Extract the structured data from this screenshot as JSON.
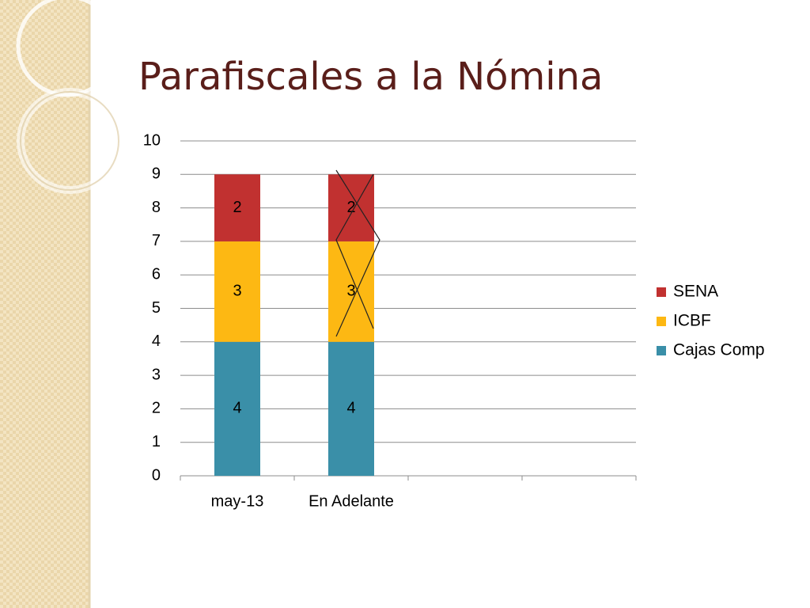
{
  "chart_data": {
    "type": "stacked_bar",
    "title": "Parafiscales a la Nómina",
    "categories": [
      "may-13",
      "En Adelante",
      null,
      null
    ],
    "series": [
      {
        "name": "Cajas Comp",
        "color": "#3a8fa8",
        "values": [
          4,
          4,
          null,
          null
        ]
      },
      {
        "name": "ICBF",
        "color": "#fdb813",
        "values": [
          3,
          3,
          null,
          null
        ]
      },
      {
        "name": "SENA",
        "color": "#c13130",
        "values": [
          2,
          2,
          null,
          null
        ]
      }
    ],
    "ylim": [
      0,
      10
    ],
    "yticks": [
      0,
      1,
      2,
      3,
      4,
      5,
      6,
      7,
      8,
      9,
      10
    ],
    "grid": true,
    "legend": "right"
  }
}
